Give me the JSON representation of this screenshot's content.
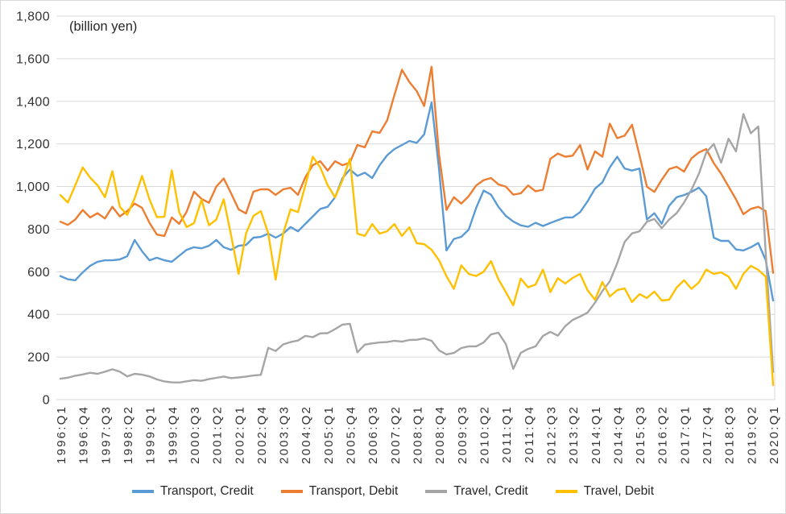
{
  "page": {
    "background": "#ffffff",
    "border_color": "#d9d9d9"
  },
  "chart_data": {
    "type": "line",
    "title": "",
    "unit_label": "(billion yen)",
    "xlabel": "",
    "ylabel": "",
    "ylim": [
      0,
      1800
    ],
    "ytick_step": 200,
    "ytick_labels": [
      "0",
      "200",
      "400",
      "600",
      "800",
      "1,000",
      "1,200",
      "1,400",
      "1,600",
      "1,800"
    ],
    "grid": "horizontal",
    "gridline_color": "#d9d9d9",
    "axis_text_color": "#333333",
    "legend_position": "bottom",
    "x_frequency": "quarterly",
    "x_start": "1996:Q1",
    "x_end": "2020:Q1",
    "points_per_series": 97,
    "x_tick_every": 3,
    "x_tick_labels": [
      "1996:Q1",
      "1996:Q4",
      "1997:Q3",
      "1998:Q2",
      "1999:Q1",
      "1999:Q4",
      "2000:Q3",
      "2001:Q2",
      "2002:Q1",
      "2002:Q4",
      "2003:Q3",
      "2004:Q2",
      "2005:Q1",
      "2005:Q4",
      "2006:Q3",
      "2007:Q2",
      "2008:Q1",
      "2008:Q4",
      "2009:Q3",
      "2010:Q2",
      "2011:Q1",
      "2011:Q4",
      "2012:Q3",
      "2013:Q2",
      "2014:Q1",
      "2014:Q4",
      "2015:Q3",
      "2016:Q2",
      "2017:Q1",
      "2017:Q4",
      "2018:Q3",
      "2019:Q2",
      "2020:Q1"
    ],
    "series": [
      {
        "name": "Transport, Credit",
        "color": "#5B9BD5",
        "values": [
          580,
          565,
          560,
          597,
          628,
          647,
          654,
          654,
          658,
          673,
          749,
          696,
          654,
          666,
          654,
          647,
          675,
          703,
          715,
          710,
          722,
          749,
          715,
          703,
          722,
          726,
          760,
          764,
          779,
          760,
          779,
          810,
          790,
          825,
          860,
          895,
          905,
          950,
          1040,
          1080,
          1050,
          1065,
          1040,
          1100,
          1146,
          1176,
          1195,
          1214,
          1205,
          1245,
          1395,
          1080,
          700,
          754,
          764,
          798,
          900,
          981,
          962,
          905,
          862,
          836,
          818,
          811,
          830,
          815,
          829,
          842,
          855,
          855,
          880,
          930,
          990,
          1020,
          1090,
          1140,
          1085,
          1075,
          1085,
          845,
          875,
          825,
          910,
          950,
          960,
          975,
          995,
          955,
          760,
          745,
          745,
          705,
          700,
          715,
          735,
          655,
          465
        ]
      },
      {
        "name": "Transport, Debit",
        "color": "#ED7D31",
        "values": [
          835,
          820,
          845,
          890,
          855,
          875,
          850,
          905,
          860,
          885,
          920,
          900,
          830,
          775,
          768,
          855,
          825,
          881,
          976,
          942,
          924,
          1000,
          1038,
          968,
          893,
          874,
          976,
          987,
          987,
          961,
          987,
          994,
          961,
          1044,
          1100,
          1119,
          1075,
          1119,
          1100,
          1113,
          1195,
          1184,
          1259,
          1252,
          1309,
          1430,
          1548,
          1491,
          1448,
          1378,
          1562,
          1150,
          890,
          950,
          920,
          955,
          1005,
          1030,
          1040,
          1010,
          1000,
          962,
          968,
          1005,
          978,
          985,
          1130,
          1155,
          1140,
          1145,
          1195,
          1080,
          1165,
          1140,
          1295,
          1227,
          1239,
          1290,
          1146,
          999,
          975,
          1032,
          1082,
          1093,
          1070,
          1132,
          1160,
          1176,
          1110,
          1060,
          1000,
          940,
          870,
          895,
          905,
          885,
          595
        ]
      },
      {
        "name": "Travel, Credit",
        "color": "#A5A5A5",
        "values": [
          98,
          103,
          112,
          118,
          126,
          121,
          131,
          142,
          131,
          109,
          121,
          117,
          109,
          95,
          85,
          81,
          80,
          86,
          91,
          88,
          96,
          102,
          108,
          101,
          104,
          108,
          113,
          116,
          243,
          228,
          259,
          270,
          277,
          299,
          293,
          311,
          312,
          331,
          352,
          356,
          222,
          258,
          264,
          268,
          270,
          276,
          272,
          280,
          281,
          287,
          276,
          231,
          212,
          219,
          242,
          250,
          250,
          268,
          306,
          314,
          261,
          144,
          219,
          238,
          250,
          299,
          318,
          300,
          345,
          374,
          390,
          408,
          455,
          510,
          555,
          640,
          740,
          780,
          790,
          835,
          848,
          805,
          845,
          875,
          925,
          985,
          1060,
          1160,
          1200,
          1112,
          1225,
          1165,
          1340,
          1250,
          1282,
          690,
          130
        ]
      },
      {
        "name": "Travel, Debit",
        "color": "#FFC000",
        "values": [
          960,
          925,
          1005,
          1090,
          1042,
          1006,
          950,
          1072,
          905,
          867,
          945,
          1050,
          940,
          856,
          858,
          1076,
          880,
          810,
          828,
          938,
          818,
          845,
          940,
          770,
          590,
          780,
          862,
          885,
          780,
          563,
          780,
          893,
          880,
          1006,
          1140,
          1090,
          1006,
          949,
          1030,
          1130,
          779,
          768,
          824,
          779,
          790,
          824,
          768,
          809,
          734,
          730,
          703,
          654,
          579,
          520,
          630,
          590,
          580,
          600,
          650,
          565,
          505,
          442,
          568,
          527,
          540,
          610,
          505,
          570,
          545,
          571,
          590,
          514,
          469,
          552,
          484,
          514,
          522,
          458,
          495,
          477,
          507,
          465,
          469,
          526,
          560,
          520,
          550,
          610,
          590,
          597,
          577,
          520,
          590,
          628,
          609,
          577,
          68
        ]
      }
    ]
  }
}
